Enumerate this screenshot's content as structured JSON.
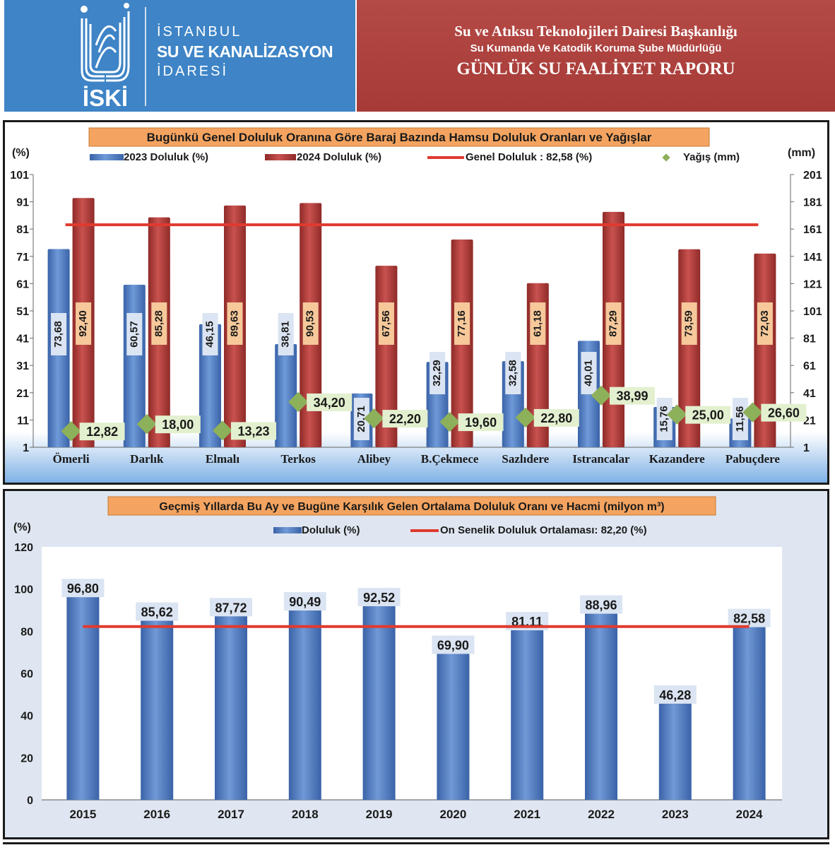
{
  "header": {
    "org_line1": "İSTANBUL",
    "org_line2": "SU VE KANALİZASYON",
    "org_line3": "İDARESİ",
    "logo_text": "İSKİ",
    "dept_line1": "Su ve Atıksu Teknolojileri Dairesi Başkanlığı",
    "dept_line2": "Su Kumanda Ve Katodik Koruma Şube Müdürlüğü",
    "dept_line3": "GÜNLÜK SU FAALİYET RAPORU"
  },
  "colors": {
    "header_blue": "#3e84c6",
    "header_red": "#a63a36",
    "bar_2023": "#4a76bf",
    "bar_2024": "#b23a38",
    "ref_line": "#e03a2e",
    "rain": "#8db05a",
    "title_bg": "#f4a460",
    "label_2023": "#dbe4f2",
    "label_2024": "#f6c89a"
  },
  "chart_data": [
    {
      "type": "bar",
      "title": "Bugünkü Genel Doluluk Oranına Göre Baraj Bazında Hamsu Doluluk Oranları ve Yağışlar",
      "ylabel_left": "(%)",
      "ylabel_right": "(mm)",
      "categories": [
        "Ömerli",
        "Darlık",
        "Elmalı",
        "Terkos",
        "Alibey",
        "B.Çekmece",
        "Sazlıdere",
        "Istrancalar",
        "Kazandere",
        "Pabuçdere"
      ],
      "series": [
        {
          "name": "2023  Doluluk (%)",
          "values": [
            "73,68",
            "60,57",
            "46,15",
            "38,81",
            "20,71",
            "32,29",
            "32,58",
            "40,01",
            "15,76",
            "11,56"
          ]
        },
        {
          "name": "2024 Doluluk (%)",
          "values": [
            "92,40",
            "85,28",
            "89,63",
            "90,53",
            "67,56",
            "77,16",
            "61,18",
            "87,29",
            "73,59",
            "72,03"
          ]
        }
      ],
      "rain": {
        "name": "Yağış (mm)",
        "values": [
          "12,82",
          "18,00",
          "13,23",
          "34,20",
          "22,20",
          "19,60",
          "22,80",
          "38,99",
          "25,00",
          "26,60"
        ]
      },
      "reference": {
        "name": "Genel Doluluk : 82,58 (%)",
        "value": 82.58
      },
      "ylim_left": [
        1,
        101
      ],
      "yticks_left": [
        "101",
        "91",
        "81",
        "71",
        "61",
        "51",
        "41",
        "31",
        "21",
        "11",
        "1"
      ],
      "ylim_right": [
        1,
        201
      ],
      "yticks_right": [
        "201",
        "181",
        "161",
        "141",
        "121",
        "101",
        "81",
        "61",
        "41",
        "21",
        "1"
      ]
    },
    {
      "type": "bar",
      "title": "Geçmiş Yıllarda Bu Ay ve Bugüne Karşılık Gelen Ortalama Doluluk Oranı ve Hacmi (milyon m³)",
      "ylabel": "(%)",
      "categories": [
        "2015",
        "2016",
        "2017",
        "2018",
        "2019",
        "2020",
        "2021",
        "2022",
        "2023",
        "2024"
      ],
      "series": [
        {
          "name": "Doluluk (%)",
          "values": [
            "96,80",
            "85,62",
            "87,72",
            "90,49",
            "92,52",
            "69,90",
            "81,11",
            "88,96",
            "46,28",
            "82,58"
          ]
        }
      ],
      "reference": {
        "name": "On Senelik Doluluk Ortalaması: 82,20 (%)",
        "value": 82.2
      },
      "ylim": [
        0,
        120
      ],
      "yticks": [
        "120",
        "100",
        "80",
        "60",
        "40",
        "20",
        "0"
      ]
    }
  ]
}
